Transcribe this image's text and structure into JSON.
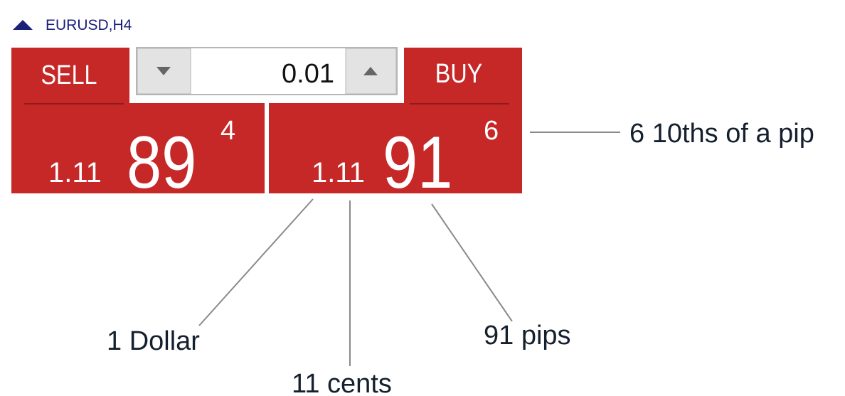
{
  "symbol": "EURUSD,H4",
  "sell": {
    "label": "SELL",
    "price_prefix": "1.11",
    "price_pips": "89",
    "price_fraction": "4"
  },
  "volume": "0.01",
  "buy": {
    "label": "BUY",
    "price_prefix": "1.11",
    "price_pips": "91",
    "price_fraction": "6"
  },
  "annotations": {
    "fraction": "6 10ths of a pip",
    "dollar": "1 Dollar",
    "cents": "11 cents",
    "pips": "91 pips"
  }
}
